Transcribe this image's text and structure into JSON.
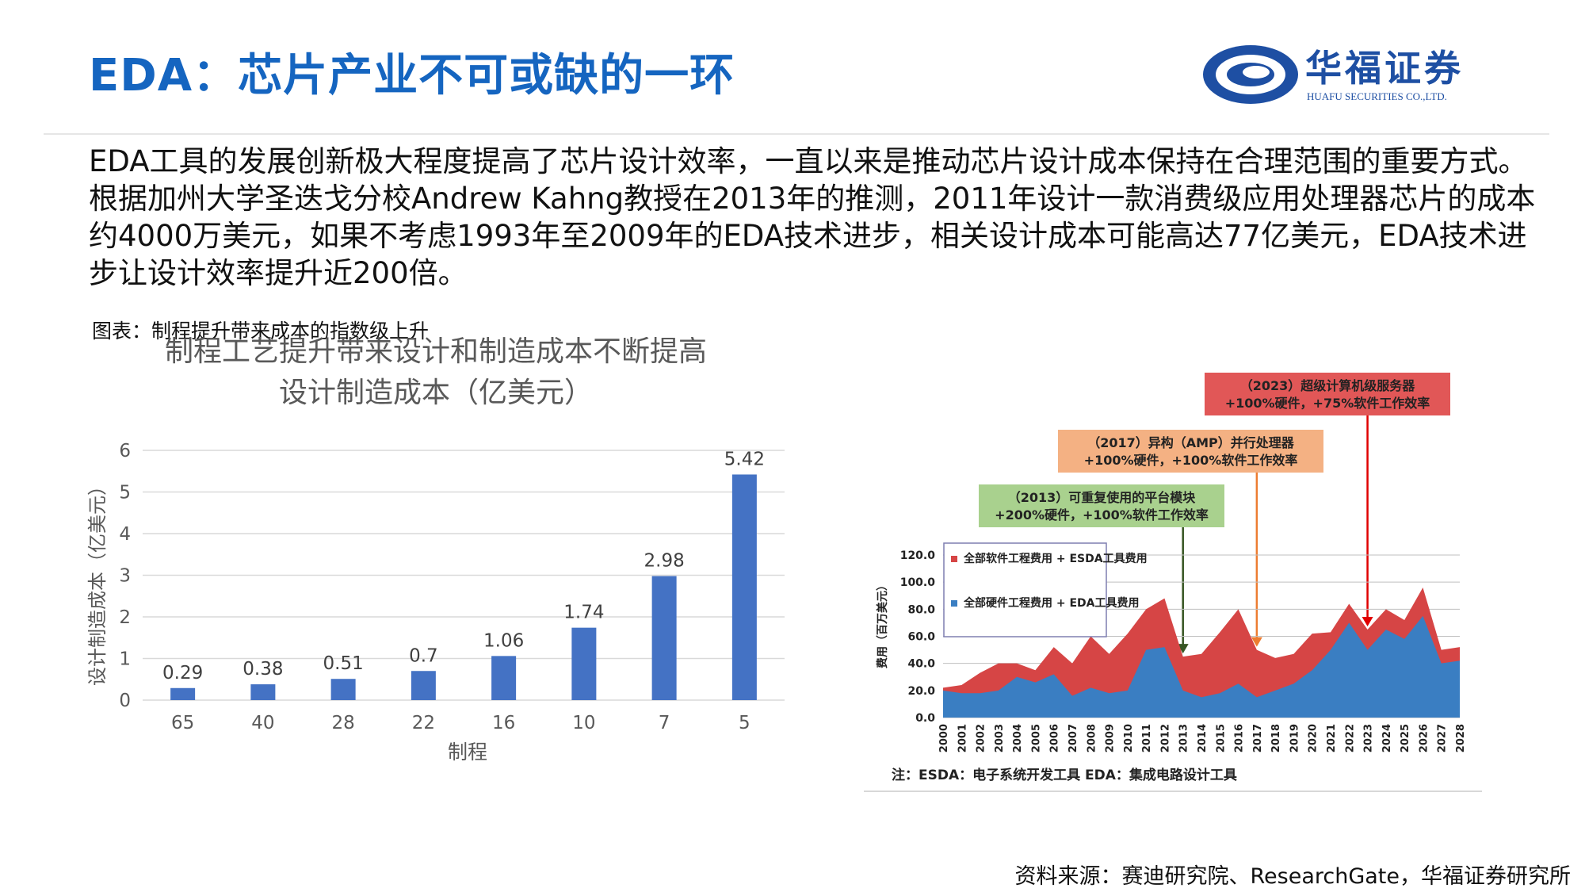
{
  "header": {
    "title": "EDA：芯片产业不可或缺的一环",
    "logo_cn": "华福证券",
    "logo_en": "HUAFU SECURITIES CO.,LTD."
  },
  "intro_text": "EDA工具的发展创新极大程度提高了芯片设计效率，一直以来是推动芯片设计成本保持在合理范围的重要方式。根据加州大学圣迭戈分校Andrew Kahng教授在2013年的推测，2011年设计一款消费级应用处理器芯片的成本约4000万美元，如果不考虑1993年至2009年的EDA技术进步，相关设计成本可能高达77亿美元，EDA技术进步让设计效率提升近200倍。",
  "figure_caption": "图表：制程提升带来成本的指数级上升",
  "source": "资料来源：赛迪研究院、ResearchGate，华福证券研究所",
  "colors": {
    "title_blue": "#1565c0",
    "bar_blue": "#4472c4",
    "area_red": "#d64545",
    "area_blue": "#3a7ec2",
    "annot_red": "#e15757",
    "annot_orange": "#f4b183",
    "annot_green": "#a9d18e"
  },
  "chart_data": [
    {
      "type": "bar",
      "title": "制程工艺提升带来设计和制造成本不断提高",
      "subtitle": "设计制造成本（亿美元）",
      "xlabel": "制程",
      "ylabel": "设计制造成本（亿美元）",
      "categories": [
        "65",
        "40",
        "28",
        "22",
        "16",
        "10",
        "7",
        "5"
      ],
      "values": [
        0.29,
        0.38,
        0.51,
        0.7,
        1.06,
        1.74,
        2.98,
        5.42
      ],
      "ylim": [
        0,
        6
      ],
      "yticks": [
        0,
        1,
        2,
        3,
        4,
        5,
        6
      ],
      "grid": true
    },
    {
      "type": "area",
      "ylabel": "费用（百万美元）",
      "x": [
        "2000",
        "2001",
        "2002",
        "2003",
        "2004",
        "2005",
        "2006",
        "2007",
        "2008",
        "2009",
        "2010",
        "2011",
        "2012",
        "2013",
        "2014",
        "2015",
        "2016",
        "2017",
        "2018",
        "2019",
        "2020",
        "2021",
        "2022",
        "2023",
        "2024",
        "2025",
        "2026",
        "2027",
        "2028"
      ],
      "ylim": [
        0,
        120
      ],
      "yticks": [
        "0.0",
        "20.0",
        "40.0",
        "60.0",
        "80.0",
        "100.0",
        "120.0"
      ],
      "series": [
        {
          "name": "全部软件工程费用 + ESDA工具费用",
          "values": [
            22,
            24,
            33,
            40,
            40,
            35,
            52,
            40,
            60,
            47,
            62,
            80,
            88,
            45,
            47,
            63,
            80,
            50,
            44,
            47,
            62,
            63,
            84,
            65,
            80,
            72,
            96,
            50,
            52
          ]
        },
        {
          "name": "全部硬件工程费用 + EDA工具费用",
          "values": [
            20,
            18,
            18,
            20,
            30,
            26,
            32,
            16,
            22,
            18,
            20,
            50,
            52,
            20,
            15,
            18,
            25,
            15,
            20,
            25,
            35,
            50,
            70,
            50,
            65,
            58,
            75,
            40,
            42
          ]
        }
      ],
      "annotations": [
        {
          "x": "2013",
          "line1": "（2013）可重复使用的平台模块",
          "line2": "+200%硬件，+100%软件工作效率"
        },
        {
          "x": "2017",
          "line1": "（2017）异构（AMP）并行处理器",
          "line2": "+100%硬件，+100%软件工作效率"
        },
        {
          "x": "2023",
          "line1": "（2023）超级计算机级服务器",
          "line2": "+100%硬件，+75%软件工作效率"
        }
      ],
      "note": "注：ESDA：电子系统开发工具 EDA：集成电路设计工具"
    }
  ]
}
